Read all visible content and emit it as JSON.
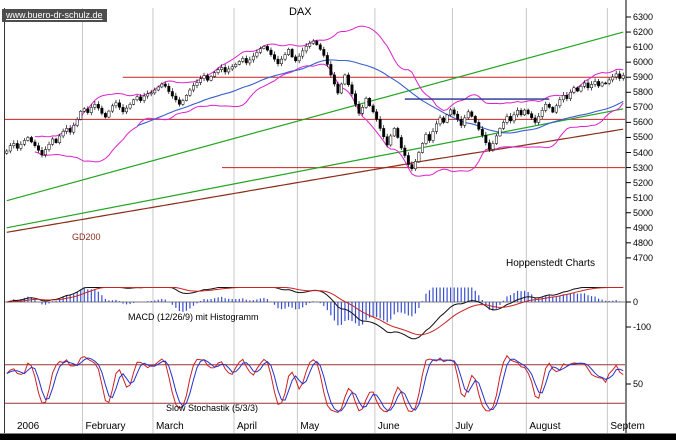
{
  "watermark": "www.buero-dr-schulz.de",
  "title": "DAX",
  "labels": {
    "gd200": "GD200",
    "brand": "Hoppenstedt Charts",
    "macd": "MACD (12/26/9) mit Histogramm",
    "stoch": "Slow Stochastik (5/3/3)"
  },
  "colors": {
    "background": "#ffffff",
    "grid": "#c9c9c9",
    "axis": "#000000",
    "candle_up": "#ffffff",
    "candle_down": "#000000",
    "candle_border": "#000000",
    "bollinger": "#dd22cc",
    "trend_green": "#22a522",
    "gd200": "#8b2e1a",
    "ma_blue": "#3a5fcd",
    "level_red": "#cc2222",
    "blue_segment": "#20308f",
    "macd_line": "#111111",
    "macd_signal": "#cc2222",
    "macd_hist": "#3a4fd0",
    "macd_zero": "#555555",
    "stoch_k": "#cc2222",
    "stoch_d": "#2233cc",
    "stoch_ref": "#993333",
    "watermark_bg": "#4d4d4d",
    "watermark_text": "#ffffff"
  },
  "chart_data": {
    "type": "candlestick",
    "title": "DAX",
    "price_axis": {
      "max": 6300,
      "min": 4700,
      "step": 100
    },
    "months": [
      {
        "label": "2006",
        "start_index": 0
      },
      {
        "label": "February",
        "start_index": 22
      },
      {
        "label": "March",
        "start_index": 42
      },
      {
        "label": "April",
        "start_index": 65
      },
      {
        "label": "May",
        "start_index": 83
      },
      {
        "label": "June",
        "start_index": 105
      },
      {
        "label": "July",
        "start_index": 127
      },
      {
        "label": "August",
        "start_index": 148
      },
      {
        "label": "Septem",
        "start_index": 171
      }
    ],
    "closes": [
      5410,
      5445,
      5460,
      5428,
      5455,
      5480,
      5500,
      5470,
      5445,
      5415,
      5385,
      5420,
      5455,
      5490,
      5465,
      5510,
      5540,
      5560,
      5535,
      5580,
      5620,
      5674,
      5690,
      5665,
      5700,
      5720,
      5695,
      5660,
      5635,
      5675,
      5710,
      5730,
      5700,
      5670,
      5695,
      5720,
      5750,
      5770,
      5745,
      5775,
      5790,
      5796,
      5815,
      5835,
      5855,
      5840,
      5805,
      5775,
      5750,
      5720,
      5745,
      5780,
      5815,
      5845,
      5865,
      5890,
      5910,
      5880,
      5905,
      5930,
      5950,
      5965,
      5935,
      5955,
      5970,
      5985,
      6005,
      6025,
      5995,
      6015,
      6040,
      6065,
      6090,
      6105,
      6080,
      6050,
      6020,
      5990,
      6020,
      6050,
      6085,
      6035,
      6009,
      6040,
      6075,
      6105,
      6125,
      6140,
      6115,
      6085,
      6045,
      5985,
      5915,
      5855,
      5795,
      5855,
      5915,
      5850,
      5790,
      5720,
      5660,
      5700,
      5760,
      5710,
      5670,
      5620,
      5560,
      5505,
      5450,
      5510,
      5560,
      5500,
      5430,
      5380,
      5320,
      5292,
      5340,
      5400,
      5460,
      5520,
      5480,
      5540,
      5590,
      5630,
      5600,
      5650,
      5683,
      5655,
      5620,
      5580,
      5630,
      5670,
      5640,
      5600,
      5555,
      5515,
      5465,
      5420,
      5460,
      5510,
      5560,
      5600,
      5640,
      5610,
      5650,
      5680,
      5650,
      5682,
      5658,
      5630,
      5600,
      5640,
      5680,
      5720,
      5700,
      5668,
      5710,
      5750,
      5780,
      5758,
      5800,
      5830,
      5808,
      5840,
      5862,
      5830,
      5852,
      5872,
      5842,
      5862,
      5859,
      5882,
      5902,
      5922,
      5892,
      5912
    ],
    "overlays": {
      "red_levels": [
        {
          "price": 5900,
          "from_frac": 0.19
        },
        {
          "price": 5620,
          "from_frac": 0.0
        },
        {
          "price": 5300,
          "from_frac": 0.35
        }
      ],
      "blue_segment": {
        "price": 5755,
        "from_index": 113,
        "to_index": 154
      },
      "green_trendlines": [
        {
          "from_index": 0,
          "from_price": 5080,
          "to_index": 175,
          "to_price": 6200
        },
        {
          "from_index": 0,
          "from_price": 4900,
          "to_index": 175,
          "to_price": 5690
        }
      ],
      "gd200_keyframes": [
        [
          0,
          4870
        ],
        [
          30,
          4990
        ],
        [
          60,
          5110
        ],
        [
          90,
          5230
        ],
        [
          120,
          5350
        ],
        [
          150,
          5460
        ],
        [
          175,
          5555
        ]
      ],
      "bollinger_period": 20,
      "ma_blue_period": 38
    },
    "macd": {
      "label": "MACD (12/26/9) mit Histogramm",
      "fast": 12,
      "slow": 26,
      "signal": 9,
      "axis_ticks": [
        0,
        -100
      ]
    },
    "stochastic": {
      "label": "Slow Stochastik (5/3/3)",
      "k": 5,
      "slow": 3,
      "d": 3,
      "axis_ticks": [
        50
      ],
      "ref_lines": [
        80,
        20
      ]
    }
  }
}
